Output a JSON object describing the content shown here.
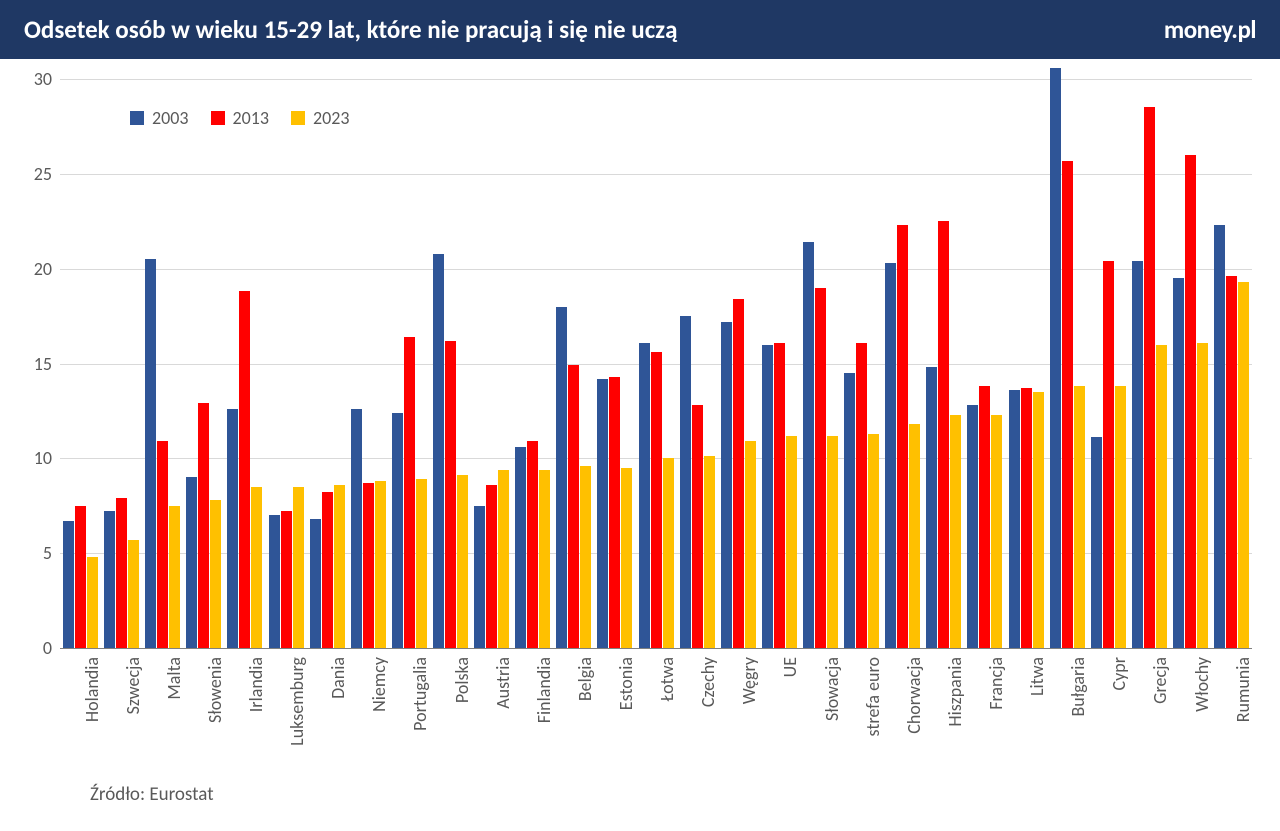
{
  "header": {
    "title": "Odsetek osób w wieku 15-29 lat, które nie pracują i się nie uczą",
    "logo": "money.pl",
    "bg_color": "#1f3864",
    "text_color": "#ffffff"
  },
  "chart": {
    "type": "bar",
    "ylim": [
      0,
      30
    ],
    "ytick_step": 5,
    "ytick_fontsize": 18,
    "xlabel_fontsize": 18,
    "grid_color": "#d9d9d9",
    "axis_color": "#808080",
    "label_color": "#595959",
    "series": [
      {
        "name": "2003",
        "color": "#2f5597"
      },
      {
        "name": "2013",
        "color": "#ff0000"
      },
      {
        "name": "2023",
        "color": "#ffc000"
      }
    ],
    "categories": [
      "Holandia",
      "Szwecja",
      "Malta",
      "Słowenia",
      "Irlandia",
      "Luksemburg",
      "Dania",
      "Niemcy",
      "Portugalia",
      "Polska",
      "Austria",
      "Finlandia",
      "Belgia",
      "Estonia",
      "Łotwa",
      "Czechy",
      "Węgry",
      "UE",
      "Słowacja",
      "strefa euro",
      "Chorwacja",
      "Hiszpania",
      "Francja",
      "Litwa",
      "Bułgaria",
      "Cypr",
      "Grecja",
      "Włochy",
      "Rumunia"
    ],
    "data": {
      "2003": [
        6.7,
        7.2,
        20.5,
        9.0,
        12.6,
        7.0,
        6.8,
        12.6,
        12.4,
        20.8,
        7.5,
        10.6,
        18.0,
        14.2,
        16.1,
        17.5,
        17.2,
        16.0,
        21.4,
        14.5,
        20.3,
        14.8,
        12.8,
        13.6,
        30.6,
        11.1,
        20.4,
        19.5,
        22.3
      ],
      "2013": [
        7.5,
        7.9,
        10.9,
        12.9,
        18.8,
        7.2,
        8.2,
        8.7,
        16.4,
        16.2,
        8.6,
        10.9,
        14.9,
        14.3,
        15.6,
        12.8,
        18.4,
        16.1,
        19.0,
        16.1,
        22.3,
        22.5,
        13.8,
        13.7,
        25.7,
        20.4,
        28.5,
        26.0,
        19.6
      ],
      "2023": [
        4.8,
        5.7,
        7.5,
        7.8,
        8.5,
        8.5,
        8.6,
        8.8,
        8.9,
        9.1,
        9.4,
        9.4,
        9.6,
        9.5,
        10.0,
        10.1,
        10.9,
        11.2,
        11.2,
        11.3,
        11.8,
        12.3,
        12.3,
        13.5,
        13.8,
        13.8,
        16.0,
        16.1,
        19.3
      ]
    }
  },
  "source": {
    "label": "Źródło: Eurostat",
    "fontsize": 19
  }
}
